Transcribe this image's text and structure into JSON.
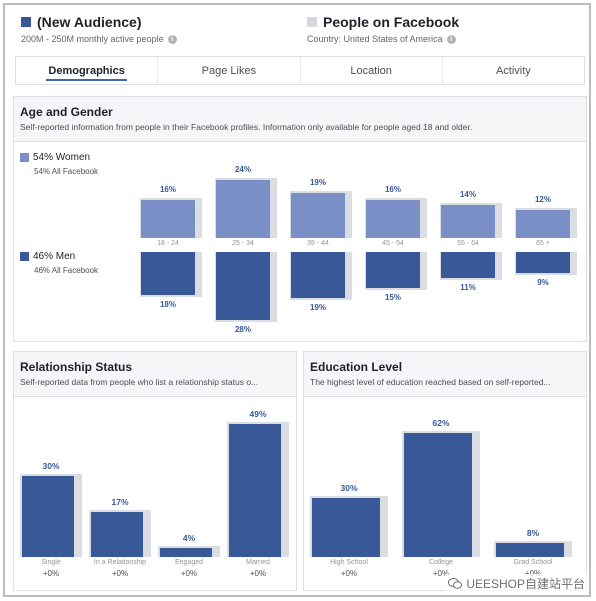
{
  "header": {
    "left": {
      "title": "(New Audience)",
      "subtitle": "200M - 250M monthly active people",
      "color": "#385898"
    },
    "right": {
      "title": "People on Facebook",
      "subtitle": "Country: United States of America",
      "color": "#d3d6db"
    }
  },
  "tabs": [
    {
      "label": "Demographics",
      "active": true
    },
    {
      "label": "Page Likes",
      "active": false
    },
    {
      "label": "Location",
      "active": false
    },
    {
      "label": "Activity",
      "active": false
    }
  ],
  "age_gender": {
    "title": "Age and Gender",
    "subtitle": "Self-reported information from people in their Facebook profiles. Information only available for people aged 18 and older.",
    "women": {
      "label": "54% Women",
      "sub": "54% All Facebook",
      "color": "#7b8fc7"
    },
    "men": {
      "label": "46% Men",
      "sub": "46% All Facebook",
      "color": "#385898"
    }
  },
  "relationship": {
    "title": "Relationship Status",
    "subtitle": "Self-reported data from people who list a relationship status o..."
  },
  "education": {
    "title": "Education Level",
    "subtitle": "The highest level of education reached based on self-reported..."
  },
  "chart_data": [
    {
      "type": "bar",
      "title": "Age and Gender",
      "categories": [
        "18 - 24",
        "25 - 34",
        "35 - 44",
        "45 - 54",
        "55 - 64",
        "65 +"
      ],
      "series": [
        {
          "name": "Women",
          "values": [
            16,
            24,
            19,
            16,
            14,
            12
          ],
          "labels": [
            "16%",
            "24%",
            "19%",
            "16%",
            "14%",
            "12%"
          ]
        },
        {
          "name": "Men",
          "values": [
            18,
            28,
            19,
            15,
            11,
            9
          ],
          "labels": [
            "18%",
            "28%",
            "19%",
            "15%",
            "11%",
            "9%"
          ]
        }
      ],
      "ylim": [
        0,
        30
      ]
    },
    {
      "type": "bar",
      "title": "Relationship Status",
      "categories": [
        "Single",
        "In a Relationship",
        "Engaged",
        "Married"
      ],
      "values": [
        30,
        17,
        4,
        49
      ],
      "labels": [
        "30%",
        "17%",
        "4%",
        "49%"
      ],
      "changes": [
        "+0%",
        "+0%",
        "+0%",
        "+0%"
      ],
      "ylim": [
        0,
        50
      ]
    },
    {
      "type": "bar",
      "title": "Education Level",
      "categories": [
        "High School",
        "College",
        "Grad School"
      ],
      "values": [
        30,
        62,
        8
      ],
      "labels": [
        "30%",
        "62%",
        "8%"
      ],
      "changes": [
        "+0%",
        "+0%",
        "+0%"
      ],
      "ylim": [
        0,
        65
      ]
    }
  ],
  "watermark": {
    "text": "UEESHOP自建站平台"
  }
}
